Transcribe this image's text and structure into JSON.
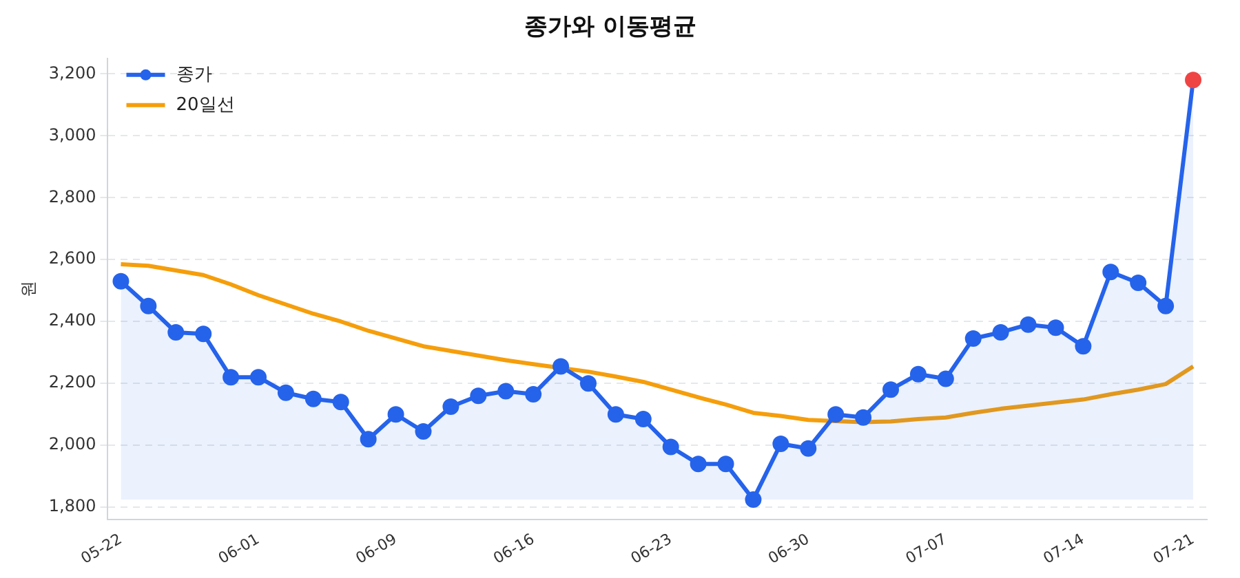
{
  "chart_data": {
    "type": "line",
    "title": "종가와 이동평균",
    "ylabel": "원",
    "categories": [
      "05-22",
      null,
      null,
      null,
      null,
      "06-01",
      null,
      null,
      null,
      null,
      "06-09",
      null,
      null,
      null,
      null,
      "06-16",
      null,
      null,
      null,
      null,
      "06-23",
      null,
      null,
      null,
      null,
      "06-30",
      null,
      null,
      null,
      null,
      "07-07",
      null,
      null,
      null,
      null,
      "07-14",
      null,
      null,
      null,
      "07-21"
    ],
    "ylim": [
      1760,
      3250
    ],
    "yticks": [
      {
        "value": 1800,
        "label": "1,800"
      },
      {
        "value": 2000,
        "label": "2,000"
      },
      {
        "value": 2200,
        "label": "2,200"
      },
      {
        "value": 2400,
        "label": "2,400"
      },
      {
        "value": 2600,
        "label": "2,600"
      },
      {
        "value": 2800,
        "label": "2,800"
      },
      {
        "value": 3000,
        "label": "3,000"
      },
      {
        "value": 3200,
        "label": "3,200"
      }
    ],
    "grid": "y",
    "legend": "top left",
    "line_style": "solid",
    "series": [
      {
        "name": "종가",
        "type": "area",
        "marker": "circle",
        "color": "#2563eb",
        "colors": [
          "#2563eb",
          "#2563eb",
          "#2563eb",
          "#2563eb",
          "#2563eb",
          "#2563eb",
          "#2563eb",
          "#2563eb",
          "#2563eb",
          "#2563eb",
          "#2563eb",
          "#2563eb",
          "#2563eb",
          "#2563eb",
          "#2563eb",
          "#2563eb",
          "#2563eb",
          "#2563eb",
          "#2563eb",
          "#2563eb",
          "#2563eb",
          "#2563eb",
          "#2563eb",
          "#2563eb",
          "#2563eb",
          "#2563eb",
          "#2563eb",
          "#2563eb",
          "#2563eb",
          "#2563eb",
          "#2563eb",
          "#2563eb",
          "#2563eb",
          "#2563eb",
          "#2563eb",
          "#2563eb",
          "#2563eb",
          "#2563eb",
          "#2563eb",
          "#ef4444"
        ],
        "values": [
          2530,
          2450,
          2365,
          2360,
          2220,
          2220,
          2170,
          2150,
          2140,
          2020,
          2100,
          2045,
          2125,
          2160,
          2175,
          2165,
          2255,
          2200,
          2100,
          2085,
          1995,
          1940,
          1940,
          1825,
          2005,
          1990,
          2100,
          2090,
          2180,
          2230,
          2215,
          2345,
          2365,
          2390,
          2380,
          2320,
          2560,
          2525,
          2450,
          3180
        ]
      },
      {
        "name": "20일선",
        "marker": "none",
        "color": "#f59e0b",
        "values": [
          2585,
          2580,
          2565,
          2550,
          2520,
          2485,
          2455,
          2425,
          2400,
          2370,
          2345,
          2320,
          2305,
          2290,
          2275,
          2262,
          2250,
          2238,
          2222,
          2205,
          2180,
          2155,
          2132,
          2105,
          2095,
          2082,
          2078,
          2075,
          2077,
          2085,
          2090,
          2105,
          2118,
          2128,
          2138,
          2148,
          2165,
          2180,
          2198,
          2255
        ]
      }
    ]
  }
}
